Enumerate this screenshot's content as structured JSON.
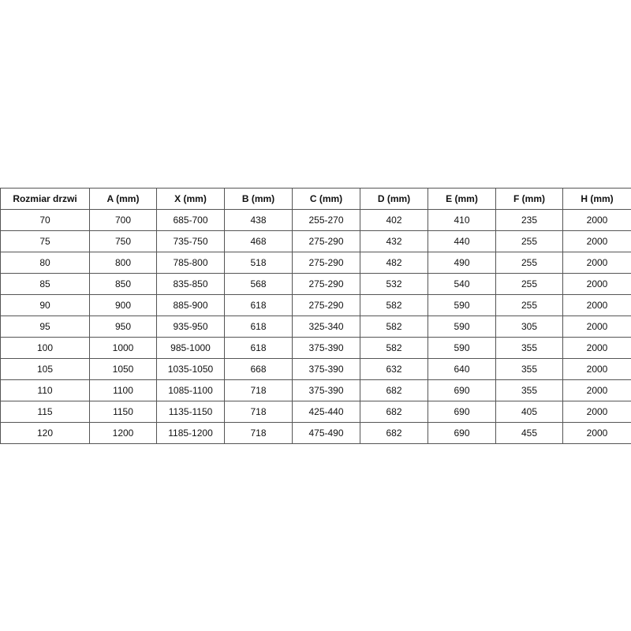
{
  "table": {
    "header": [
      "Rozmiar drzwi",
      "A (mm)",
      "X (mm)",
      "B (mm)",
      "C (mm)",
      "D (mm)",
      "E (mm)",
      "F (mm)",
      "H (mm)"
    ],
    "rows": [
      [
        "70",
        "700",
        "685-700",
        "438",
        "255-270",
        "402",
        "410",
        "235",
        "2000"
      ],
      [
        "75",
        "750",
        "735-750",
        "468",
        "275-290",
        "432",
        "440",
        "255",
        "2000"
      ],
      [
        "80",
        "800",
        "785-800",
        "518",
        "275-290",
        "482",
        "490",
        "255",
        "2000"
      ],
      [
        "85",
        "850",
        "835-850",
        "568",
        "275-290",
        "532",
        "540",
        "255",
        "2000"
      ],
      [
        "90",
        "900",
        "885-900",
        "618",
        "275-290",
        "582",
        "590",
        "255",
        "2000"
      ],
      [
        "95",
        "950",
        "935-950",
        "618",
        "325-340",
        "582",
        "590",
        "305",
        "2000"
      ],
      [
        "100",
        "1000",
        "985-1000",
        "618",
        "375-390",
        "582",
        "590",
        "355",
        "2000"
      ],
      [
        "105",
        "1050",
        "1035-1050",
        "668",
        "375-390",
        "632",
        "640",
        "355",
        "2000"
      ],
      [
        "110",
        "1100",
        "1085-1100",
        "718",
        "375-390",
        "682",
        "690",
        "355",
        "2000"
      ],
      [
        "115",
        "1150",
        "1135-1150",
        "718",
        "425-440",
        "682",
        "690",
        "405",
        "2000"
      ],
      [
        "120",
        "1200",
        "1185-1200",
        "718",
        "475-490",
        "682",
        "690",
        "455",
        "2000"
      ]
    ]
  }
}
